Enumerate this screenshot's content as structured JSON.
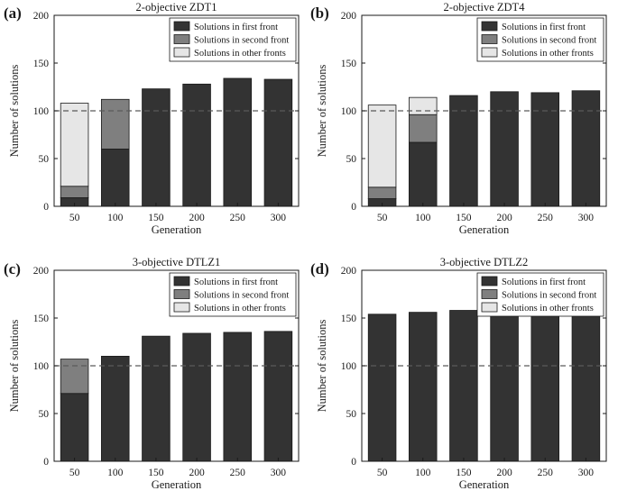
{
  "figure": {
    "colors": {
      "first": "#333333",
      "second": "#7f7f7f",
      "other": "#e6e6e6",
      "reference": "#5a5a5a",
      "edge": "#1a1a1a"
    }
  },
  "chart_data": [
    {
      "panel": "(a)",
      "type": "bar",
      "stacked": true,
      "title": "2-objective ZDT1",
      "xlabel": "Generation",
      "ylabel": "Number of solutions",
      "categories": [
        "50",
        "100",
        "150",
        "200",
        "250",
        "300"
      ],
      "ylim": [
        0,
        200
      ],
      "yticks": [
        0,
        50,
        100,
        150,
        200
      ],
      "reference_line": 100,
      "legend_position": "top-right",
      "series": [
        {
          "name": "Solutions in first front",
          "key": "first",
          "values": [
            9,
            60,
            123,
            128,
            134,
            133
          ]
        },
        {
          "name": "Solutions in second front",
          "key": "second",
          "values": [
            12,
            52,
            0,
            0,
            0,
            0
          ]
        },
        {
          "name": "Solutions in other fronts",
          "key": "other",
          "values": [
            87,
            0,
            0,
            0,
            0,
            0
          ]
        }
      ]
    },
    {
      "panel": "(b)",
      "type": "bar",
      "stacked": true,
      "title": "2-objective ZDT4",
      "xlabel": "Generation",
      "ylabel": "Number of solutions",
      "categories": [
        "50",
        "100",
        "150",
        "200",
        "250",
        "300"
      ],
      "ylim": [
        0,
        200
      ],
      "yticks": [
        0,
        50,
        100,
        150,
        200
      ],
      "reference_line": 100,
      "legend_position": "top-right",
      "series": [
        {
          "name": "Solutions in first front",
          "key": "first",
          "values": [
            8,
            67,
            116,
            120,
            119,
            121
          ]
        },
        {
          "name": "Solutions in second front",
          "key": "second",
          "values": [
            12,
            29,
            0,
            0,
            0,
            0
          ]
        },
        {
          "name": "Solutions in other fronts",
          "key": "other",
          "values": [
            86,
            18,
            0,
            0,
            0,
            0
          ]
        }
      ]
    },
    {
      "panel": "(c)",
      "type": "bar",
      "stacked": true,
      "title": "3-objective DTLZ1",
      "xlabel": "Generation",
      "ylabel": "Number of solutions",
      "categories": [
        "50",
        "100",
        "150",
        "200",
        "250",
        "300"
      ],
      "ylim": [
        0,
        200
      ],
      "yticks": [
        0,
        50,
        100,
        150,
        200
      ],
      "reference_line": 100,
      "legend_position": "top-right",
      "series": [
        {
          "name": "Solutions in first front",
          "key": "first",
          "values": [
            71,
            110,
            131,
            134,
            135,
            136
          ]
        },
        {
          "name": "Solutions in second front",
          "key": "second",
          "values": [
            36,
            0,
            0,
            0,
            0,
            0
          ]
        },
        {
          "name": "Solutions in other fronts",
          "key": "other",
          "values": [
            0,
            0,
            0,
            0,
            0,
            0
          ]
        }
      ]
    },
    {
      "panel": "(d)",
      "type": "bar",
      "stacked": true,
      "title": "3-objective DTLZ2",
      "xlabel": "Generation",
      "ylabel": "Number of solutions",
      "categories": [
        "50",
        "100",
        "150",
        "200",
        "250",
        "300"
      ],
      "ylim": [
        0,
        200
      ],
      "yticks": [
        0,
        50,
        100,
        150,
        200
      ],
      "reference_line": 100,
      "legend_position": "top-right",
      "series": [
        {
          "name": "Solutions in first front",
          "key": "first",
          "values": [
            154,
            156,
            158,
            160,
            160,
            160
          ]
        },
        {
          "name": "Solutions in second front",
          "key": "second",
          "values": [
            0,
            0,
            0,
            0,
            0,
            0
          ]
        },
        {
          "name": "Solutions in other fronts",
          "key": "other",
          "values": [
            0,
            0,
            0,
            0,
            0,
            0
          ]
        }
      ]
    }
  ]
}
